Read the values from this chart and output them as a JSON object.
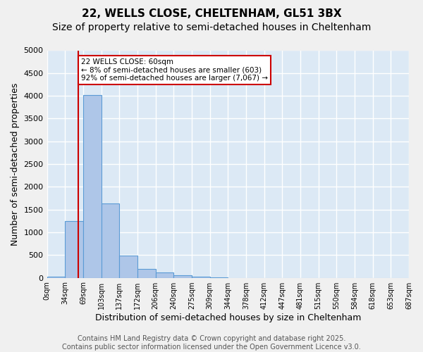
{
  "title1": "22, WELLS CLOSE, CHELTENHAM, GL51 3BX",
  "title2": "Size of property relative to semi-detached houses in Cheltenham",
  "xlabel": "Distribution of semi-detached houses by size in Cheltenham",
  "ylabel": "Number of semi-detached properties",
  "bin_labels": [
    "0sqm",
    "34sqm",
    "69sqm",
    "103sqm",
    "137sqm",
    "172sqm",
    "206sqm",
    "240sqm",
    "275sqm",
    "309sqm",
    "344sqm",
    "378sqm",
    "412sqm",
    "447sqm",
    "481sqm",
    "515sqm",
    "550sqm",
    "584sqm",
    "618sqm",
    "653sqm",
    "687sqm"
  ],
  "bar_values": [
    30,
    1250,
    4020,
    1640,
    490,
    195,
    115,
    55,
    30,
    10,
    0,
    0,
    0,
    0,
    0,
    0,
    0,
    0,
    0,
    0
  ],
  "bar_color": "#aec6e8",
  "bar_edge_color": "#5b9bd5",
  "annotation_text": "22 WELLS CLOSE: 60sqm\n← 8% of semi-detached houses are smaller (603)\n92% of semi-detached houses are larger (7,067) →",
  "annotation_box_color": "#ffffff",
  "annotation_box_edge": "#cc0000",
  "ylim": [
    0,
    5000
  ],
  "yticks": [
    0,
    500,
    1000,
    1500,
    2000,
    2500,
    3000,
    3500,
    4000,
    4500,
    5000
  ],
  "background_color": "#dce9f5",
  "grid_color": "#ffffff",
  "footer_text": "Contains HM Land Registry data © Crown copyright and database right 2025.\nContains public sector information licensed under the Open Government Licence v3.0.",
  "title1_fontsize": 11,
  "title2_fontsize": 10,
  "xlabel_fontsize": 9,
  "ylabel_fontsize": 9,
  "footer_fontsize": 7
}
